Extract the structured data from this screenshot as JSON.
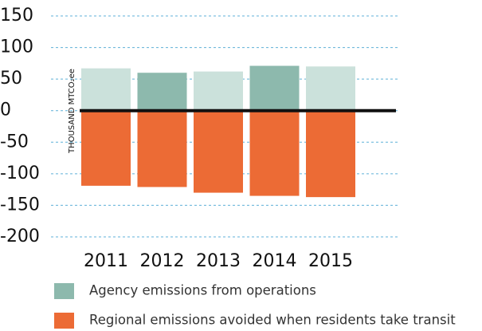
{
  "chart_data": {
    "type": "bar",
    "y_label": "THOUSAND MTCO₂ee",
    "categories": [
      "2011",
      "2012",
      "2013",
      "2014",
      "2015"
    ],
    "series": [
      {
        "name": "Agency emissions from operations",
        "color": "#8db9ad",
        "colors": [
          "#cbe1db",
          "#8db9ad",
          "#cbe1db",
          "#8db9ad",
          "#cbe1db"
        ],
        "values": [
          67,
          60,
          62,
          71,
          70
        ]
      },
      {
        "name": "Regional emissions avoided when residents take transit",
        "color": "#ec6b35",
        "values": [
          -119,
          -121,
          -130,
          -135,
          -137
        ]
      }
    ],
    "ylim": [
      -200,
      150
    ],
    "yticks": [
      -200,
      -150,
      -100,
      -50,
      0,
      50,
      100,
      150
    ],
    "grid": true
  }
}
